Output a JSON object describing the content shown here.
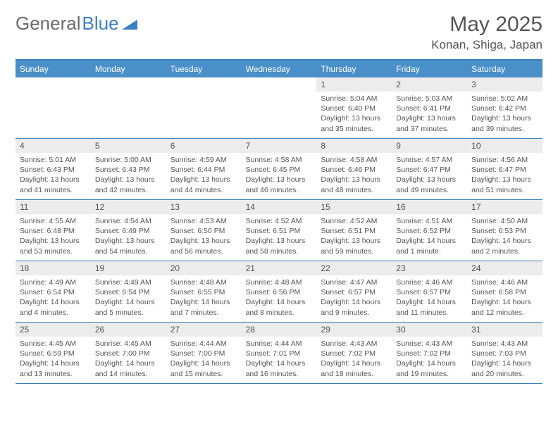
{
  "logo": {
    "part1": "General",
    "part2": "Blue"
  },
  "title": "May 2025",
  "location": "Konan, Shiga, Japan",
  "colors": {
    "header_bg": "#4a8fc8",
    "border": "#3a7fc0",
    "daynum_bg": "#ececec",
    "text": "#555555",
    "logo_gray": "#6b6b6b",
    "logo_blue": "#3a7fc0"
  },
  "weekdays": [
    "Sunday",
    "Monday",
    "Tuesday",
    "Wednesday",
    "Thursday",
    "Friday",
    "Saturday"
  ],
  "weeks": [
    [
      null,
      null,
      null,
      null,
      {
        "n": "1",
        "sr": "5:04 AM",
        "ss": "6:40 PM",
        "dl": "13 hours and 35 minutes."
      },
      {
        "n": "2",
        "sr": "5:03 AM",
        "ss": "6:41 PM",
        "dl": "13 hours and 37 minutes."
      },
      {
        "n": "3",
        "sr": "5:02 AM",
        "ss": "6:42 PM",
        "dl": "13 hours and 39 minutes."
      }
    ],
    [
      {
        "n": "4",
        "sr": "5:01 AM",
        "ss": "6:43 PM",
        "dl": "13 hours and 41 minutes."
      },
      {
        "n": "5",
        "sr": "5:00 AM",
        "ss": "6:43 PM",
        "dl": "13 hours and 42 minutes."
      },
      {
        "n": "6",
        "sr": "4:59 AM",
        "ss": "6:44 PM",
        "dl": "13 hours and 44 minutes."
      },
      {
        "n": "7",
        "sr": "4:58 AM",
        "ss": "6:45 PM",
        "dl": "13 hours and 46 minutes."
      },
      {
        "n": "8",
        "sr": "4:58 AM",
        "ss": "6:46 PM",
        "dl": "13 hours and 48 minutes."
      },
      {
        "n": "9",
        "sr": "4:57 AM",
        "ss": "6:47 PM",
        "dl": "13 hours and 49 minutes."
      },
      {
        "n": "10",
        "sr": "4:56 AM",
        "ss": "6:47 PM",
        "dl": "13 hours and 51 minutes."
      }
    ],
    [
      {
        "n": "11",
        "sr": "4:55 AM",
        "ss": "6:48 PM",
        "dl": "13 hours and 53 minutes."
      },
      {
        "n": "12",
        "sr": "4:54 AM",
        "ss": "6:49 PM",
        "dl": "13 hours and 54 minutes."
      },
      {
        "n": "13",
        "sr": "4:53 AM",
        "ss": "6:50 PM",
        "dl": "13 hours and 56 minutes."
      },
      {
        "n": "14",
        "sr": "4:52 AM",
        "ss": "6:51 PM",
        "dl": "13 hours and 58 minutes."
      },
      {
        "n": "15",
        "sr": "4:52 AM",
        "ss": "6:51 PM",
        "dl": "13 hours and 59 minutes."
      },
      {
        "n": "16",
        "sr": "4:51 AM",
        "ss": "6:52 PM",
        "dl": "14 hours and 1 minute."
      },
      {
        "n": "17",
        "sr": "4:50 AM",
        "ss": "6:53 PM",
        "dl": "14 hours and 2 minutes."
      }
    ],
    [
      {
        "n": "18",
        "sr": "4:49 AM",
        "ss": "6:54 PM",
        "dl": "14 hours and 4 minutes."
      },
      {
        "n": "19",
        "sr": "4:49 AM",
        "ss": "6:54 PM",
        "dl": "14 hours and 5 minutes."
      },
      {
        "n": "20",
        "sr": "4:48 AM",
        "ss": "6:55 PM",
        "dl": "14 hours and 7 minutes."
      },
      {
        "n": "21",
        "sr": "4:48 AM",
        "ss": "6:56 PM",
        "dl": "14 hours and 8 minutes."
      },
      {
        "n": "22",
        "sr": "4:47 AM",
        "ss": "6:57 PM",
        "dl": "14 hours and 9 minutes."
      },
      {
        "n": "23",
        "sr": "4:46 AM",
        "ss": "6:57 PM",
        "dl": "14 hours and 11 minutes."
      },
      {
        "n": "24",
        "sr": "4:46 AM",
        "ss": "6:58 PM",
        "dl": "14 hours and 12 minutes."
      }
    ],
    [
      {
        "n": "25",
        "sr": "4:45 AM",
        "ss": "6:59 PM",
        "dl": "14 hours and 13 minutes."
      },
      {
        "n": "26",
        "sr": "4:45 AM",
        "ss": "7:00 PM",
        "dl": "14 hours and 14 minutes."
      },
      {
        "n": "27",
        "sr": "4:44 AM",
        "ss": "7:00 PM",
        "dl": "14 hours and 15 minutes."
      },
      {
        "n": "28",
        "sr": "4:44 AM",
        "ss": "7:01 PM",
        "dl": "14 hours and 16 minutes."
      },
      {
        "n": "29",
        "sr": "4:43 AM",
        "ss": "7:02 PM",
        "dl": "14 hours and 18 minutes."
      },
      {
        "n": "30",
        "sr": "4:43 AM",
        "ss": "7:02 PM",
        "dl": "14 hours and 19 minutes."
      },
      {
        "n": "31",
        "sr": "4:43 AM",
        "ss": "7:03 PM",
        "dl": "14 hours and 20 minutes."
      }
    ]
  ]
}
